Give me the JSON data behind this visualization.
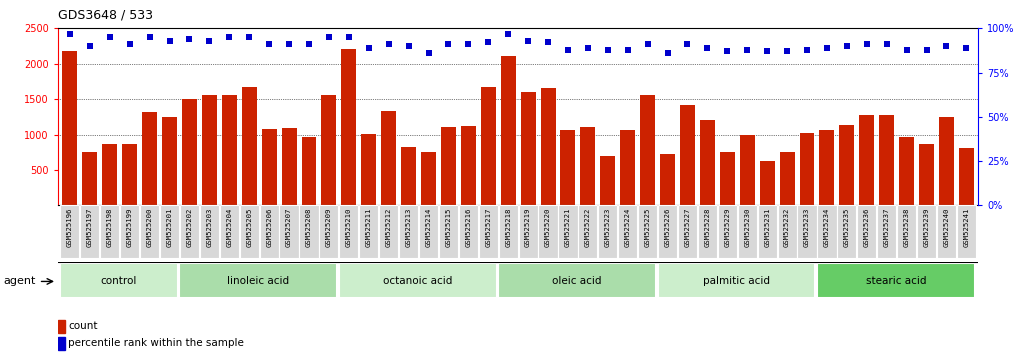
{
  "title": "GDS3648 / 533",
  "categories": [
    "GSM525196",
    "GSM525197",
    "GSM525198",
    "GSM525199",
    "GSM525200",
    "GSM525201",
    "GSM525202",
    "GSM525203",
    "GSM525204",
    "GSM525205",
    "GSM525206",
    "GSM525207",
    "GSM525208",
    "GSM525209",
    "GSM525210",
    "GSM525211",
    "GSM525212",
    "GSM525213",
    "GSM525214",
    "GSM525215",
    "GSM525216",
    "GSM525217",
    "GSM525218",
    "GSM525219",
    "GSM525220",
    "GSM525221",
    "GSM525222",
    "GSM525223",
    "GSM525224",
    "GSM525225",
    "GSM525226",
    "GSM525227",
    "GSM525228",
    "GSM525229",
    "GSM525230",
    "GSM525231",
    "GSM525232",
    "GSM525233",
    "GSM525234",
    "GSM525235",
    "GSM525236",
    "GSM525237",
    "GSM525238",
    "GSM525239",
    "GSM525240",
    "GSM525241"
  ],
  "bar_values": [
    2180,
    760,
    870,
    870,
    1320,
    1250,
    1500,
    1560,
    1560,
    1670,
    1080,
    1090,
    960,
    1560,
    2210,
    1010,
    1330,
    830,
    760,
    1100,
    1120,
    1670,
    2110,
    1600,
    1660,
    1070,
    1110,
    700,
    1060,
    1560,
    720,
    1410,
    1200,
    760,
    1000,
    630,
    760,
    1020,
    1060,
    1140,
    1270,
    1280,
    970,
    860,
    1250,
    810
  ],
  "dot_values": [
    97,
    90,
    95,
    91,
    95,
    93,
    94,
    93,
    95,
    95,
    91,
    91,
    91,
    95,
    95,
    89,
    91,
    90,
    86,
    91,
    91,
    92,
    97,
    93,
    92,
    88,
    89,
    88,
    88,
    91,
    86,
    91,
    89,
    87,
    88,
    87,
    87,
    88,
    89,
    90,
    91,
    91,
    88,
    88,
    90,
    89
  ],
  "groups": [
    {
      "label": "control",
      "start": 0,
      "end": 6,
      "color": "#cceecc"
    },
    {
      "label": "linoleic acid",
      "start": 6,
      "end": 14,
      "color": "#aaddaa"
    },
    {
      "label": "octanoic acid",
      "start": 14,
      "end": 22,
      "color": "#cceecc"
    },
    {
      "label": "oleic acid",
      "start": 22,
      "end": 30,
      "color": "#aaddaa"
    },
    {
      "label": "palmitic acid",
      "start": 30,
      "end": 38,
      "color": "#cceecc"
    },
    {
      "label": "stearic acid",
      "start": 38,
      "end": 46,
      "color": "#66cc66"
    }
  ],
  "bar_color": "#cc2200",
  "dot_color": "#0000cc",
  "ylim_left": [
    0,
    2500
  ],
  "ylim_right": [
    0,
    100
  ],
  "yticks_left": [
    500,
    1000,
    1500,
    2000,
    2500
  ],
  "yticks_right": [
    0,
    25,
    50,
    75,
    100
  ],
  "grid_values": [
    1000,
    1500,
    2000
  ],
  "agent_label": "agent",
  "legend_count_label": "count",
  "legend_pct_label": "percentile rank within the sample",
  "background_color": "#ffffff",
  "ticklabel_bg": "#dddddd"
}
